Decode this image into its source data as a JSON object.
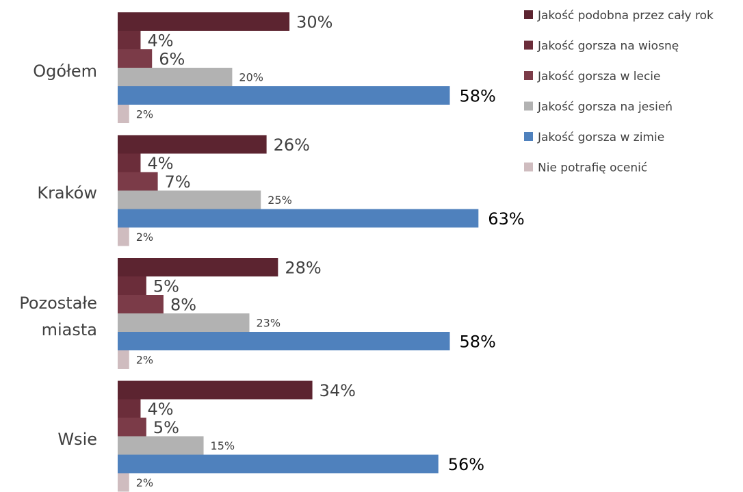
{
  "chart_data": {
    "type": "bar",
    "orientation": "horizontal",
    "categories": [
      "Ogółem",
      "Kraków",
      "Pozostałe miasta",
      "Wsie"
    ],
    "series": [
      {
        "name": "Jakość podobna przez cały rok",
        "values": [
          30,
          26,
          28,
          34
        ],
        "labels": [
          "30%",
          "26%",
          "28%",
          "34%"
        ],
        "color": "#5c2430"
      },
      {
        "name": "Jakość gorsza na wiosnę",
        "values": [
          4,
          4,
          5,
          4
        ],
        "labels": [
          "4%",
          "4%",
          "5%",
          "4%"
        ],
        "color": "#6b2d3a"
      },
      {
        "name": "Jakość gorsza w lecie",
        "values": [
          6,
          7,
          8,
          5
        ],
        "labels": [
          "6%",
          "7%",
          "8%",
          "5%"
        ],
        "color": "#7b3b48"
      },
      {
        "name": "Jakość gorsza na jesień",
        "values": [
          20,
          25,
          23,
          15
        ],
        "labels": [
          "20%",
          "25%",
          "23%",
          "15%"
        ],
        "color": "#b2b2b2"
      },
      {
        "name": "Jakość gorsza w zimie",
        "values": [
          58,
          63,
          58,
          56
        ],
        "labels": [
          "58%",
          "63%",
          "58%",
          "56%"
        ],
        "color": "#4f81bd"
      },
      {
        "name": "Nie potrafię ocenić",
        "values": [
          2,
          2,
          2,
          2
        ],
        "labels": [
          "2%",
          "2%",
          "2%",
          "2%"
        ],
        "color": "#cfbcbf"
      }
    ],
    "xlim": [
      0,
      100
    ],
    "legend_position": "top-right",
    "grid": false
  }
}
